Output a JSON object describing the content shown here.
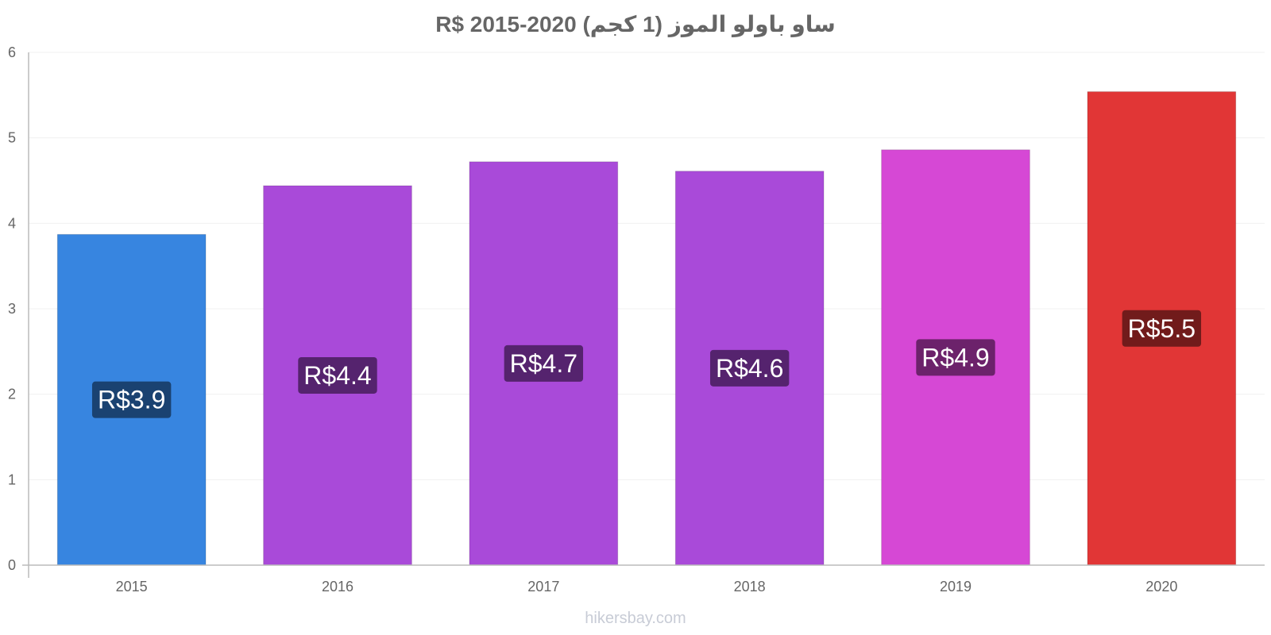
{
  "chart_data": {
    "type": "bar",
    "title": "ساو باولو الموز (1 كجم) R$ 2015-2020",
    "xlabel": "",
    "ylabel": "",
    "categories": [
      "2015",
      "2016",
      "2017",
      "2018",
      "2019",
      "2020"
    ],
    "values": [
      3.87,
      4.44,
      4.72,
      4.61,
      4.86,
      5.54
    ],
    "data_labels": [
      "R$3.9",
      "R$4.4",
      "R$4.7",
      "R$4.6",
      "R$4.9",
      "R$5.5"
    ],
    "ylim": [
      0,
      6
    ],
    "yticks": [
      "0",
      "1",
      "2",
      "3",
      "4",
      "5",
      "6"
    ],
    "grid": true,
    "bar_colors": [
      "#3785e0",
      "#a94ad9",
      "#a94ad9",
      "#a94ad9",
      "#d648d5",
      "#e13636"
    ],
    "label_bg_colors": [
      "#1a4271",
      "#55236e",
      "#55236e",
      "#55236e",
      "#6c226b",
      "#711b1b"
    ]
  },
  "watermark": "hikersbay.com"
}
